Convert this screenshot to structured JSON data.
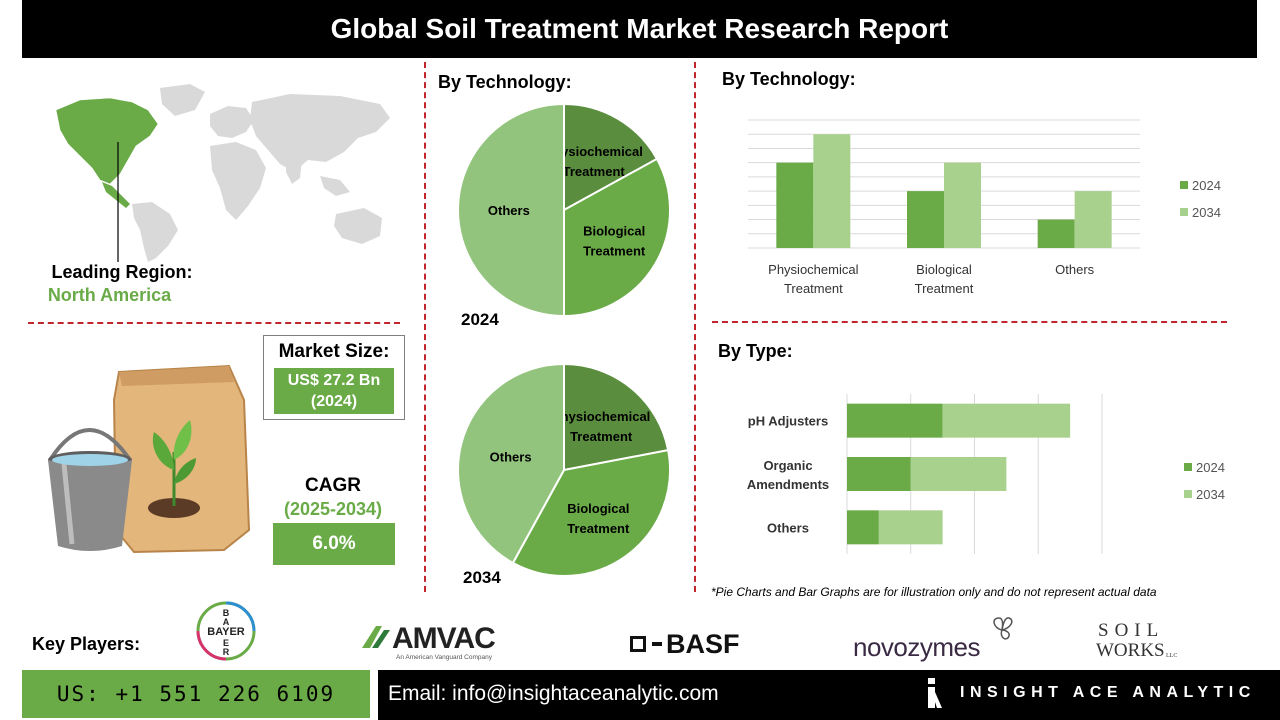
{
  "title": "Global Soil Treatment Market Research Report",
  "region": {
    "label": "Leading Region:",
    "value": "North America"
  },
  "market_size": {
    "label": "Market Size:",
    "value_line1": "US$ 27.2 Bn",
    "value_line2": "(2024)"
  },
  "cagr": {
    "label": "CAGR",
    "period": "(2025-2034)",
    "value": "6.0%"
  },
  "pie_section": {
    "heading": "By Technology:",
    "year_2024": "2024",
    "year_2034": "2034"
  },
  "bar_section": {
    "heading": "By Technology:"
  },
  "type_section": {
    "heading": "By Type:"
  },
  "disclaimer": "*Pie Charts and Bar Graphs are for illustration only and do not represent actual data",
  "key_players": {
    "label": "Key Players:",
    "logos": [
      "BAYER",
      "AMVAC",
      "BASF",
      "novozymes",
      "SOIL WORKS"
    ],
    "amvac_sub": "An American Vanguard Company",
    "soilworks_line1": "SOIL",
    "soilworks_line2": "WORKS",
    "soilworks_llc": "LLC"
  },
  "footer": {
    "phone": "US: +1 551 226 6109",
    "email": "Email: info@insightaceanalytic.com",
    "brand": "INSIGHT ACE ANALYTIC"
  },
  "colors": {
    "dark_green": "#5a8e3e",
    "mid_green": "#6aab48",
    "light_green": "#93c47d",
    "pale_green": "#a9d18e",
    "accent_red": "#c0262c"
  },
  "chart_data": [
    {
      "type": "pie",
      "title": "2024",
      "slices": [
        {
          "label": "Physiochemical Treatment",
          "value": 17
        },
        {
          "label": "Biological Treatment",
          "value": 33
        },
        {
          "label": "Others",
          "value": 50
        }
      ]
    },
    {
      "type": "pie",
      "title": "2034",
      "slices": [
        {
          "label": "Physiochemical Treatment",
          "value": 22
        },
        {
          "label": "Biological Treatment",
          "value": 36
        },
        {
          "label": "Others",
          "value": 42
        }
      ]
    },
    {
      "type": "bar",
      "orientation": "vertical",
      "categories": [
        "Physiochemical Treatment",
        "Biological Treatment",
        "Others"
      ],
      "series": [
        {
          "name": "2024",
          "values": [
            3,
            2,
            1
          ]
        },
        {
          "name": "2034",
          "values": [
            4,
            3,
            2
          ]
        }
      ],
      "ylim": [
        0,
        4.5
      ],
      "grid": true,
      "legend": "right"
    },
    {
      "type": "bar",
      "orientation": "horizontal",
      "stacked": true,
      "categories": [
        "pH Adjusters",
        "Organic Amendments",
        "Others"
      ],
      "series": [
        {
          "name": "2024",
          "values": [
            1.5,
            1.0,
            0.5
          ]
        },
        {
          "name": "2034",
          "values": [
            2.0,
            1.5,
            1.0
          ]
        }
      ],
      "xlim": [
        0,
        4
      ],
      "grid": true,
      "legend": "right"
    }
  ]
}
